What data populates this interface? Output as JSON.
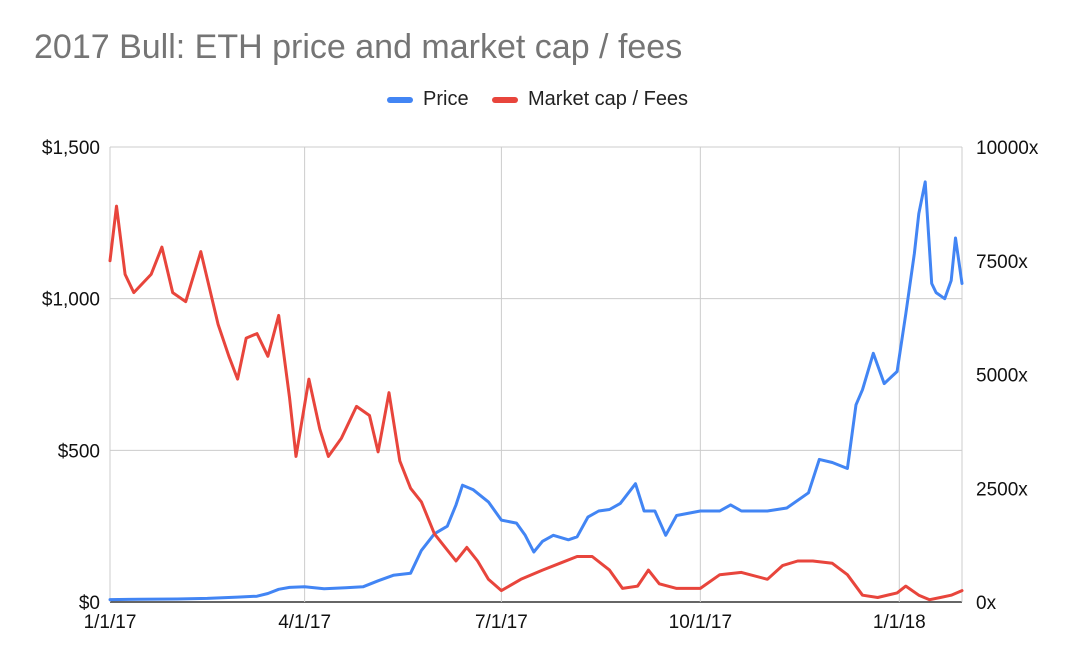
{
  "chart_data": {
    "type": "line",
    "title": "2017 Bull: ETH price and market cap / fees",
    "legend_position": "top",
    "grid": true,
    "x_axis": {
      "ticks": [
        "1/1/17",
        "4/1/17",
        "7/1/17",
        "10/1/17",
        "1/1/18"
      ],
      "range": [
        "2017-01-01",
        "2018-01-30"
      ]
    },
    "y_axis_left": {
      "ticks": [
        "$0",
        "$500",
        "$1,000",
        "$1,500"
      ],
      "tick_values": [
        0,
        500,
        1000,
        1500
      ],
      "range": [
        0,
        1500
      ]
    },
    "y_axis_right": {
      "ticks": [
        "0x",
        "2500x",
        "5000x",
        "7500x",
        "10000x"
      ],
      "tick_values": [
        0,
        2500,
        5000,
        7500,
        10000
      ],
      "range": [
        0,
        10000
      ]
    },
    "series": [
      {
        "name": "Price",
        "axis": "left",
        "color": "#4285f4",
        "points": [
          [
            "2017-01-01",
            8
          ],
          [
            "2017-01-15",
            9
          ],
          [
            "2017-02-01",
            10
          ],
          [
            "2017-02-15",
            12
          ],
          [
            "2017-03-01",
            16
          ],
          [
            "2017-03-10",
            19
          ],
          [
            "2017-03-15",
            28
          ],
          [
            "2017-03-20",
            42
          ],
          [
            "2017-03-25",
            48
          ],
          [
            "2017-04-01",
            50
          ],
          [
            "2017-04-10",
            44
          ],
          [
            "2017-04-20",
            47
          ],
          [
            "2017-04-28",
            50
          ],
          [
            "2017-05-05",
            70
          ],
          [
            "2017-05-12",
            88
          ],
          [
            "2017-05-20",
            95
          ],
          [
            "2017-05-25",
            170
          ],
          [
            "2017-05-31",
            225
          ],
          [
            "2017-06-06",
            250
          ],
          [
            "2017-06-10",
            320
          ],
          [
            "2017-06-13",
            385
          ],
          [
            "2017-06-18",
            370
          ],
          [
            "2017-06-25",
            330
          ],
          [
            "2017-07-01",
            270
          ],
          [
            "2017-07-08",
            260
          ],
          [
            "2017-07-12",
            220
          ],
          [
            "2017-07-16",
            165
          ],
          [
            "2017-07-20",
            200
          ],
          [
            "2017-07-25",
            220
          ],
          [
            "2017-08-01",
            205
          ],
          [
            "2017-08-05",
            215
          ],
          [
            "2017-08-10",
            280
          ],
          [
            "2017-08-15",
            300
          ],
          [
            "2017-08-20",
            305
          ],
          [
            "2017-08-25",
            325
          ],
          [
            "2017-09-01",
            390
          ],
          [
            "2017-09-05",
            300
          ],
          [
            "2017-09-10",
            300
          ],
          [
            "2017-09-15",
            220
          ],
          [
            "2017-09-20",
            285
          ],
          [
            "2017-10-01",
            300
          ],
          [
            "2017-10-10",
            300
          ],
          [
            "2017-10-15",
            320
          ],
          [
            "2017-10-20",
            300
          ],
          [
            "2017-11-01",
            300
          ],
          [
            "2017-11-10",
            310
          ],
          [
            "2017-11-20",
            360
          ],
          [
            "2017-11-25",
            470
          ],
          [
            "2017-12-01",
            460
          ],
          [
            "2017-12-08",
            440
          ],
          [
            "2017-12-12",
            650
          ],
          [
            "2017-12-15",
            700
          ],
          [
            "2017-12-20",
            820
          ],
          [
            "2017-12-25",
            720
          ],
          [
            "2017-12-31",
            760
          ],
          [
            "2018-01-04",
            950
          ],
          [
            "2018-01-08",
            1150
          ],
          [
            "2018-01-10",
            1280
          ],
          [
            "2018-01-13",
            1385
          ],
          [
            "2018-01-16",
            1050
          ],
          [
            "2018-01-18",
            1020
          ],
          [
            "2018-01-22",
            1000
          ],
          [
            "2018-01-25",
            1060
          ],
          [
            "2018-01-27",
            1200
          ],
          [
            "2018-01-30",
            1050
          ]
        ]
      },
      {
        "name": "Market cap / Fees",
        "axis": "right",
        "color": "#e8453c",
        "points": [
          [
            "2017-01-01",
            7500
          ],
          [
            "2017-01-04",
            8700
          ],
          [
            "2017-01-08",
            7200
          ],
          [
            "2017-01-12",
            6800
          ],
          [
            "2017-01-20",
            7200
          ],
          [
            "2017-01-25",
            7800
          ],
          [
            "2017-01-30",
            6800
          ],
          [
            "2017-02-05",
            6600
          ],
          [
            "2017-02-12",
            7700
          ],
          [
            "2017-02-20",
            6100
          ],
          [
            "2017-02-25",
            5400
          ],
          [
            "2017-03-01",
            4900
          ],
          [
            "2017-03-05",
            5800
          ],
          [
            "2017-03-10",
            5900
          ],
          [
            "2017-03-15",
            5400
          ],
          [
            "2017-03-20",
            6300
          ],
          [
            "2017-03-25",
            4500
          ],
          [
            "2017-03-28",
            3200
          ],
          [
            "2017-04-03",
            4900
          ],
          [
            "2017-04-08",
            3800
          ],
          [
            "2017-04-12",
            3200
          ],
          [
            "2017-04-18",
            3600
          ],
          [
            "2017-04-25",
            4300
          ],
          [
            "2017-05-01",
            4100
          ],
          [
            "2017-05-05",
            3300
          ],
          [
            "2017-05-10",
            4600
          ],
          [
            "2017-05-15",
            3100
          ],
          [
            "2017-05-20",
            2500
          ],
          [
            "2017-05-25",
            2200
          ],
          [
            "2017-05-31",
            1500
          ],
          [
            "2017-06-05",
            1200
          ],
          [
            "2017-06-10",
            900
          ],
          [
            "2017-06-15",
            1200
          ],
          [
            "2017-06-20",
            900
          ],
          [
            "2017-06-25",
            500
          ],
          [
            "2017-07-01",
            250
          ],
          [
            "2017-07-10",
            500
          ],
          [
            "2017-07-20",
            700
          ],
          [
            "2017-07-28",
            850
          ],
          [
            "2017-08-05",
            1000
          ],
          [
            "2017-08-12",
            1000
          ],
          [
            "2017-08-20",
            700
          ],
          [
            "2017-08-26",
            300
          ],
          [
            "2017-09-02",
            350
          ],
          [
            "2017-09-07",
            700
          ],
          [
            "2017-09-12",
            400
          ],
          [
            "2017-09-20",
            300
          ],
          [
            "2017-10-01",
            300
          ],
          [
            "2017-10-10",
            600
          ],
          [
            "2017-10-20",
            650
          ],
          [
            "2017-11-01",
            500
          ],
          [
            "2017-11-08",
            800
          ],
          [
            "2017-11-15",
            900
          ],
          [
            "2017-11-22",
            900
          ],
          [
            "2017-12-01",
            850
          ],
          [
            "2017-12-08",
            600
          ],
          [
            "2017-12-15",
            150
          ],
          [
            "2017-12-22",
            100
          ],
          [
            "2017-12-31",
            200
          ],
          [
            "2018-01-04",
            350
          ],
          [
            "2018-01-10",
            150
          ],
          [
            "2018-01-15",
            50
          ],
          [
            "2018-01-20",
            100
          ],
          [
            "2018-01-25",
            150
          ],
          [
            "2018-01-30",
            250
          ]
        ]
      }
    ]
  }
}
